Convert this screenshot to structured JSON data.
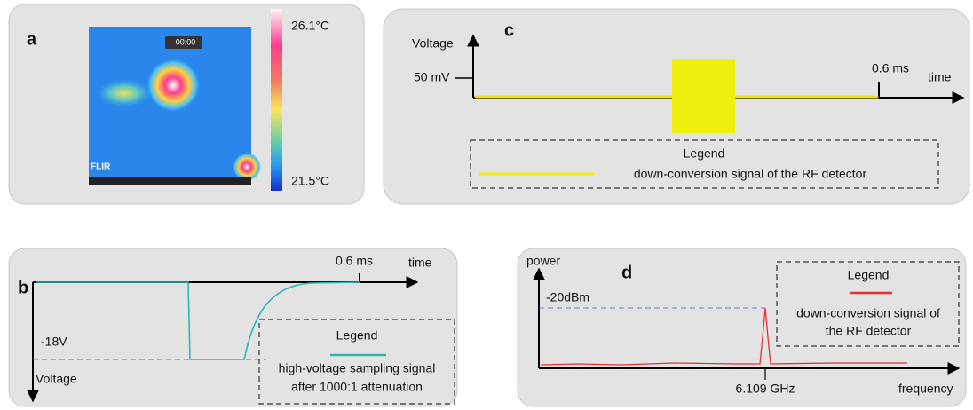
{
  "panel_a": {
    "label": "a",
    "overlay_time": "00:00",
    "brand": "FLIR",
    "scale_max": "26.1°C",
    "scale_min": "21.5°C"
  },
  "panel_c": {
    "label": "c",
    "y_axis": "Voltage",
    "x_axis": "time",
    "level": "50 mV",
    "time_mark": "0.6 ms",
    "legend": {
      "title": "Legend",
      "entry": "down-conversion signal of the RF detector"
    }
  },
  "panel_b": {
    "label": "b",
    "y_axis": "Voltage",
    "x_axis": "time",
    "level": "-18V",
    "time_mark": "0.6 ms",
    "legend": {
      "title": "Legend",
      "entry_line1": "high-voltage sampling signal",
      "entry_line2": "after 1000:1 attenuation"
    }
  },
  "panel_d": {
    "label": "d",
    "y_axis": "power",
    "x_axis": "frequency",
    "level": "-20dBm",
    "peak": "6.109 GHz",
    "legend": {
      "title": "Legend",
      "entry_line1": "down-conversion signal of",
      "entry_line2": "the RF detector"
    }
  }
}
